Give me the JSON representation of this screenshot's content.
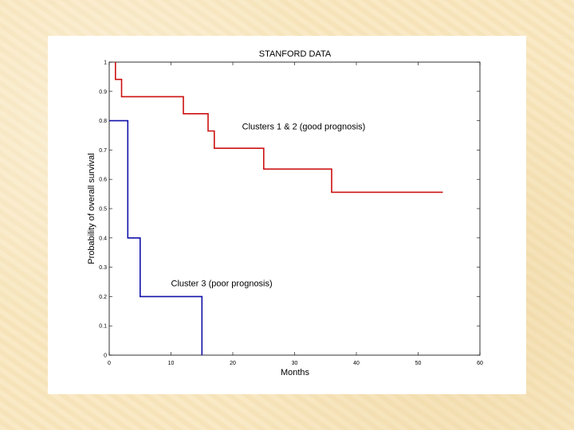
{
  "chart_data": {
    "type": "line",
    "title": "STANFORD DATA",
    "xlabel": "Months",
    "ylabel": "Probability of overall survival",
    "xlim": [
      0,
      60
    ],
    "ylim": [
      0,
      1
    ],
    "xticks": [
      0,
      10,
      20,
      30,
      40,
      50,
      60
    ],
    "yticks": [
      0,
      0.1,
      0.2,
      0.3,
      0.4,
      0.5,
      0.6,
      0.7,
      0.8,
      0.9,
      1
    ],
    "ytick_labels": [
      "0",
      "0.1",
      "0.2",
      "0.3",
      "0.4",
      "0.5",
      "0.6",
      "0.7",
      "0.8",
      "0.9",
      "1"
    ],
    "grid": false,
    "series": [
      {
        "name": "Clusters 1 & 2 (good prognosis)",
        "color": "#cc1111",
        "step": true,
        "x": [
          1,
          1,
          2,
          2,
          12,
          12,
          16,
          16,
          17,
          17,
          25,
          25,
          36,
          36,
          54
        ],
        "y": [
          1,
          0.941,
          0.941,
          0.882,
          0.882,
          0.824,
          0.824,
          0.765,
          0.765,
          0.706,
          0.706,
          0.635,
          0.635,
          0.556,
          0.556
        ]
      },
      {
        "name": "Cluster 3 (poor prognosis)",
        "color": "#1111aa",
        "step": true,
        "x": [
          0,
          3,
          3,
          5,
          5,
          15,
          15
        ],
        "y": [
          0.8,
          0.8,
          0.4,
          0.4,
          0.2,
          0.2,
          0
        ]
      }
    ],
    "annotations": [
      {
        "text": "Clusters 1 & 2 (good prognosis)",
        "x": 21.5,
        "y": 0.77
      },
      {
        "text": "Cluster 3 (poor prognosis)",
        "x": 10,
        "y": 0.235
      }
    ]
  }
}
